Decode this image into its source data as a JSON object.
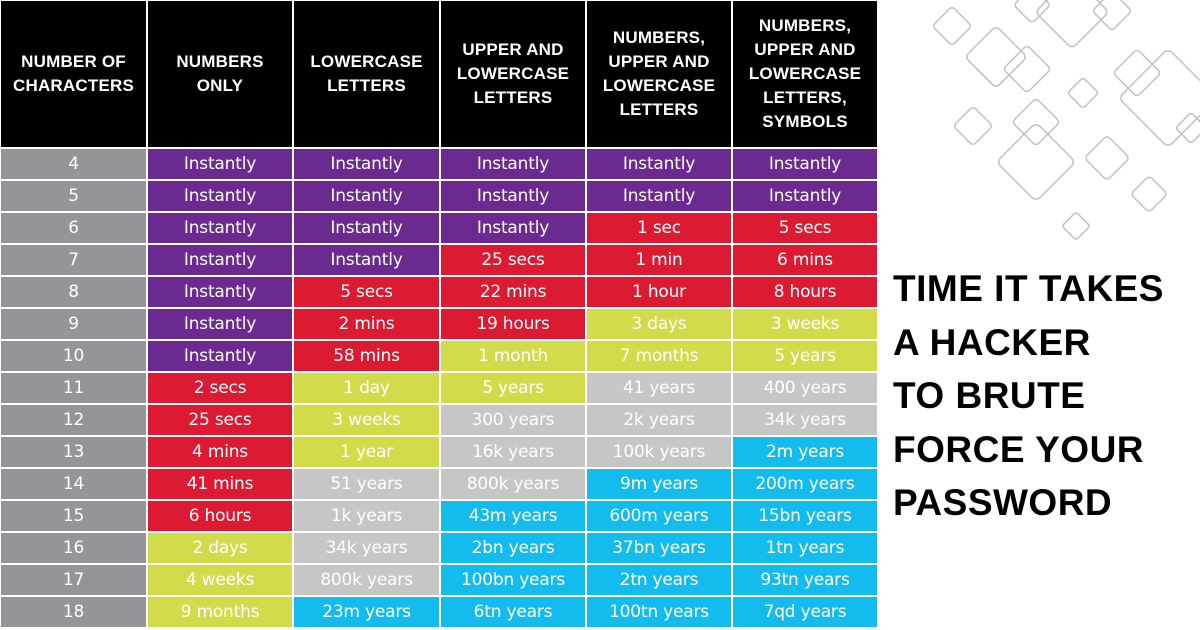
{
  "title": "TIME IT TAKES\nA HACKER\nTO BRUTE\nFORCE YOUR\nPASSWORD",
  "colors": {
    "instantly": "#6a2a90",
    "seconds_to_hours": "#dc1a32",
    "days_to_years": "#d2dc4a",
    "hundreds_to_thousands_years": "#c6c6c6",
    "millions_plus_years": "#14bcee",
    "row_label": "#939598",
    "header": "#000000"
  },
  "table": {
    "headers": [
      "NUMBER OF\nCHARACTERS",
      "NUMBERS\nONLY",
      "LOWERCASE\nLETTERS",
      "UPPER AND\nLOWERCASE\nLETTERS",
      "NUMBERS,\nUPPER AND\nLOWERCASE\nLETTERS",
      "NUMBERS,\nUPPER AND\nLOWERCASE\nLETTERS,\nSYMBOLS"
    ],
    "rows": [
      {
        "chars": "4",
        "cells": [
          [
            "Instantly",
            "purple"
          ],
          [
            "Instantly",
            "purple"
          ],
          [
            "Instantly",
            "purple"
          ],
          [
            "Instantly",
            "purple"
          ],
          [
            "Instantly",
            "purple"
          ]
        ]
      },
      {
        "chars": "5",
        "cells": [
          [
            "Instantly",
            "purple"
          ],
          [
            "Instantly",
            "purple"
          ],
          [
            "Instantly",
            "purple"
          ],
          [
            "Instantly",
            "purple"
          ],
          [
            "Instantly",
            "purple"
          ]
        ]
      },
      {
        "chars": "6",
        "cells": [
          [
            "Instantly",
            "purple"
          ],
          [
            "Instantly",
            "purple"
          ],
          [
            "Instantly",
            "purple"
          ],
          [
            "1 sec",
            "red"
          ],
          [
            "5 secs",
            "red"
          ]
        ]
      },
      {
        "chars": "7",
        "cells": [
          [
            "Instantly",
            "purple"
          ],
          [
            "Instantly",
            "purple"
          ],
          [
            "25 secs",
            "red"
          ],
          [
            "1 min",
            "red"
          ],
          [
            "6 mins",
            "red"
          ]
        ]
      },
      {
        "chars": "8",
        "cells": [
          [
            "Instantly",
            "purple"
          ],
          [
            "5 secs",
            "red"
          ],
          [
            "22 mins",
            "red"
          ],
          [
            "1 hour",
            "red"
          ],
          [
            "8 hours",
            "red"
          ]
        ]
      },
      {
        "chars": "9",
        "cells": [
          [
            "Instantly",
            "purple"
          ],
          [
            "2 mins",
            "red"
          ],
          [
            "19 hours",
            "red"
          ],
          [
            "3 days",
            "lime"
          ],
          [
            "3 weeks",
            "lime"
          ]
        ]
      },
      {
        "chars": "10",
        "cells": [
          [
            "Instantly",
            "purple"
          ],
          [
            "58 mins",
            "red"
          ],
          [
            "1 month",
            "lime"
          ],
          [
            "7 months",
            "lime"
          ],
          [
            "5 years",
            "lime"
          ]
        ]
      },
      {
        "chars": "11",
        "cells": [
          [
            "2 secs",
            "red"
          ],
          [
            "1 day",
            "lime"
          ],
          [
            "5 years",
            "lime"
          ],
          [
            "41 years",
            "grey"
          ],
          [
            "400 years",
            "grey"
          ]
        ]
      },
      {
        "chars": "12",
        "cells": [
          [
            "25 secs",
            "red"
          ],
          [
            "3 weeks",
            "lime"
          ],
          [
            "300 years",
            "grey"
          ],
          [
            "2k years",
            "grey"
          ],
          [
            "34k years",
            "grey"
          ]
        ]
      },
      {
        "chars": "13",
        "cells": [
          [
            "4 mins",
            "red"
          ],
          [
            "1 year",
            "lime"
          ],
          [
            "16k years",
            "grey"
          ],
          [
            "100k years",
            "grey"
          ],
          [
            "2m years",
            "blue"
          ]
        ]
      },
      {
        "chars": "14",
        "cells": [
          [
            "41 mins",
            "red"
          ],
          [
            "51 years",
            "grey"
          ],
          [
            "800k years",
            "grey"
          ],
          [
            "9m years",
            "blue"
          ],
          [
            "200m years",
            "blue"
          ]
        ]
      },
      {
        "chars": "15",
        "cells": [
          [
            "6 hours",
            "red"
          ],
          [
            "1k years",
            "grey"
          ],
          [
            "43m years",
            "blue"
          ],
          [
            "600m years",
            "blue"
          ],
          [
            "15bn years",
            "blue"
          ]
        ]
      },
      {
        "chars": "16",
        "cells": [
          [
            "2 days",
            "lime"
          ],
          [
            "34k years",
            "grey"
          ],
          [
            "2bn years",
            "blue"
          ],
          [
            "37bn years",
            "blue"
          ],
          [
            "1tn years",
            "blue"
          ]
        ]
      },
      {
        "chars": "17",
        "cells": [
          [
            "4 weeks",
            "lime"
          ],
          [
            "800k years",
            "grey"
          ],
          [
            "100bn years",
            "blue"
          ],
          [
            "2tn years",
            "blue"
          ],
          [
            "93tn years",
            "blue"
          ]
        ]
      },
      {
        "chars": "18",
        "cells": [
          [
            "9 months",
            "lime"
          ],
          [
            "23m years",
            "blue"
          ],
          [
            "6tn years",
            "blue"
          ],
          [
            "100tn years",
            "blue"
          ],
          [
            "7qd years",
            "blue"
          ]
        ]
      }
    ]
  },
  "decoration": {
    "icon": "diamond-pattern-icon",
    "stroke": "#c4c4c4"
  }
}
